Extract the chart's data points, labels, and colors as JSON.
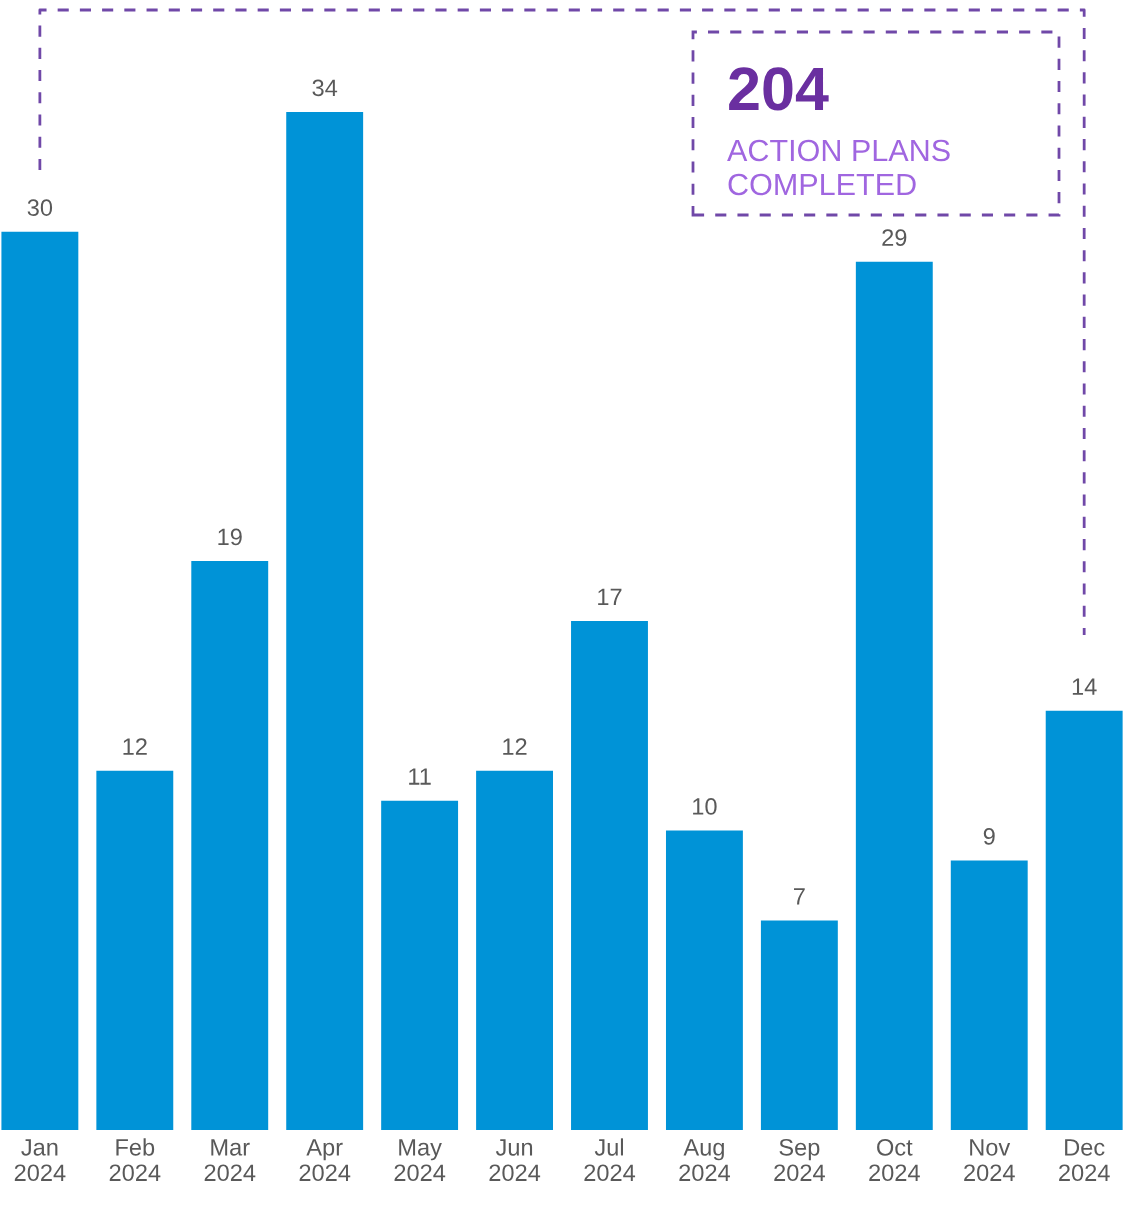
{
  "chart_data": {
    "type": "bar",
    "categories": [
      "Jan\n2024",
      "Feb\n2024",
      "Mar\n2024",
      "Apr\n2024",
      "May\n2024",
      "Jun\n2024",
      "Jul\n2024",
      "Aug\n2024",
      "Sep\n2024",
      "Oct\n2024",
      "Nov\n2024",
      "Dec\n2024"
    ],
    "values": [
      30,
      12,
      19,
      34,
      11,
      12,
      17,
      10,
      7,
      29,
      9,
      14
    ],
    "color": "#0093d7",
    "data_labels": true,
    "annotations": [
      "204",
      "ACTION PLANS\nCOMPLETED"
    ],
    "grid": false,
    "legend": false
  }
}
